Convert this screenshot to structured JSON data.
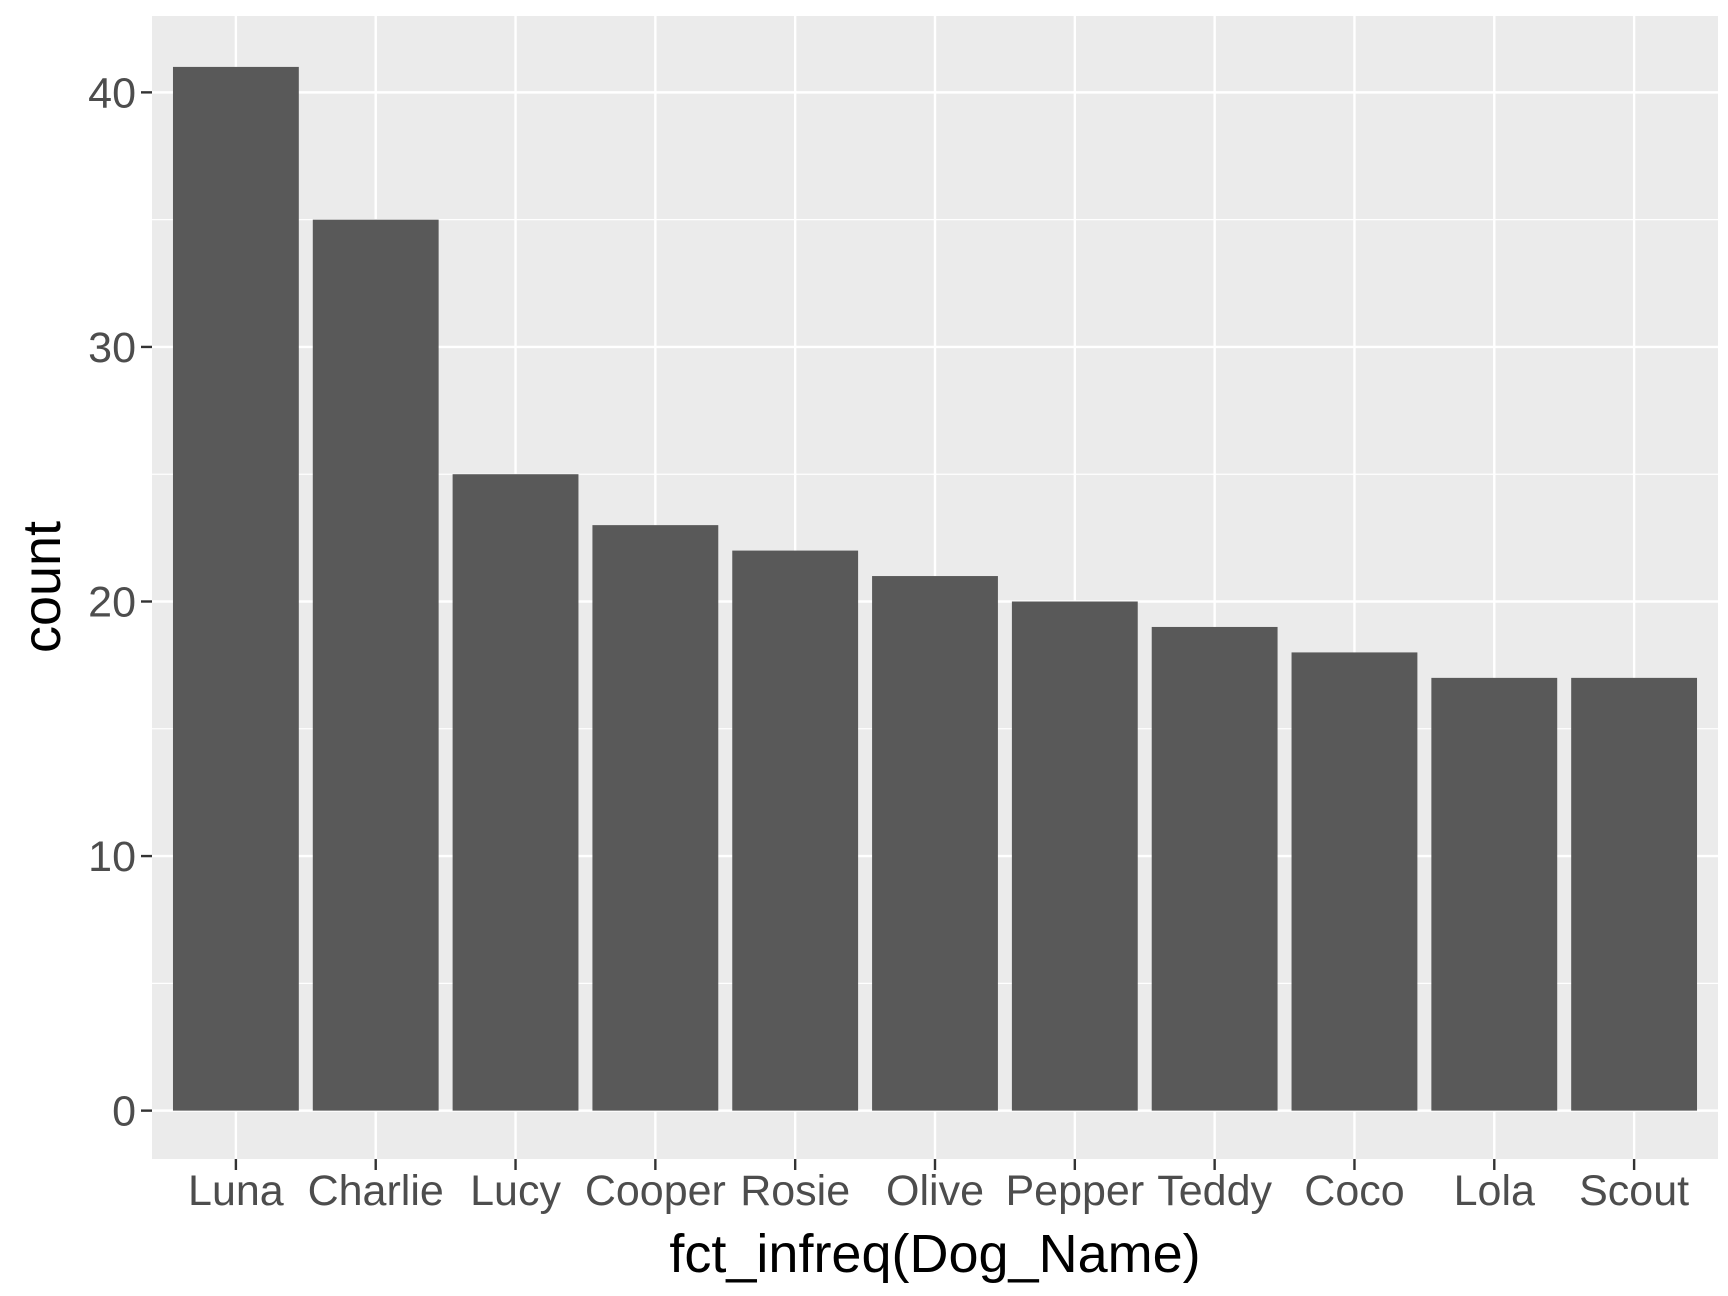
{
  "chart_data": {
    "type": "bar",
    "categories": [
      "Luna",
      "Charlie",
      "Lucy",
      "Cooper",
      "Rosie",
      "Olive",
      "Pepper",
      "Teddy",
      "Coco",
      "Lola",
      "Scout"
    ],
    "values": [
      41,
      35,
      25,
      23,
      22,
      21,
      20,
      19,
      18,
      17,
      17
    ],
    "xlabel": "fct_infreq(Dog_Name)",
    "ylabel": "count",
    "ylim": [
      -1.9,
      43
    ],
    "yticks": [
      0,
      10,
      20,
      30,
      40
    ],
    "grid": true,
    "colors": {
      "panel": "#ebebeb",
      "grid": "#ffffff",
      "bar": "#595959",
      "tick": "#333333"
    }
  }
}
